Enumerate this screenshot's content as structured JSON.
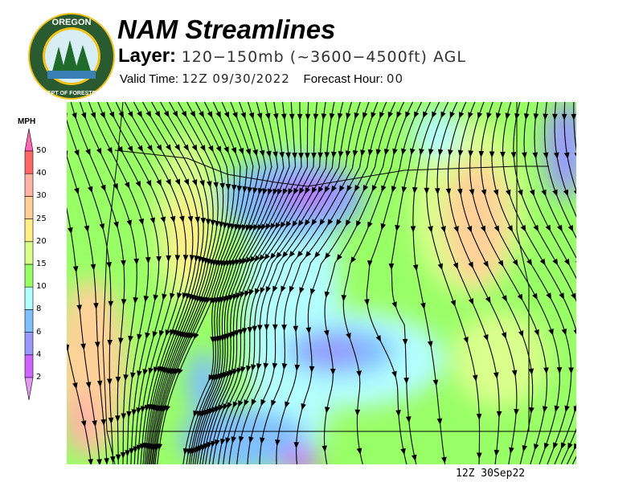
{
  "header": {
    "title": "NAM Streamlines",
    "layer_label": "Layer:",
    "layer_value": "120−150mb (~3600−4500ft) AGL",
    "valid_label": "Valid Time:",
    "valid_value": "12Z 09/30/2022",
    "forecast_label": "Forecast Hour:",
    "forecast_value": "00"
  },
  "logo": {
    "text_top": "OREGON",
    "text_bottom": "DEPARTMENT OF FORESTRY"
  },
  "colorbar": {
    "unit": "MPH",
    "levels": [
      "2",
      "4",
      "6",
      "8",
      "10",
      "15",
      "20",
      "25",
      "30",
      "40",
      "50"
    ],
    "colors": [
      "#e699f2",
      "#cc66ff",
      "#9999ff",
      "#80bfff",
      "#b3ffff",
      "#99ff66",
      "#d9ff8c",
      "#ffee88",
      "#ffd199",
      "#ffb3a6",
      "#ff6666",
      "#ff66b3"
    ]
  },
  "map": {
    "timestamp": "12Z 30Sep22",
    "base_color": "#99ff66"
  }
}
